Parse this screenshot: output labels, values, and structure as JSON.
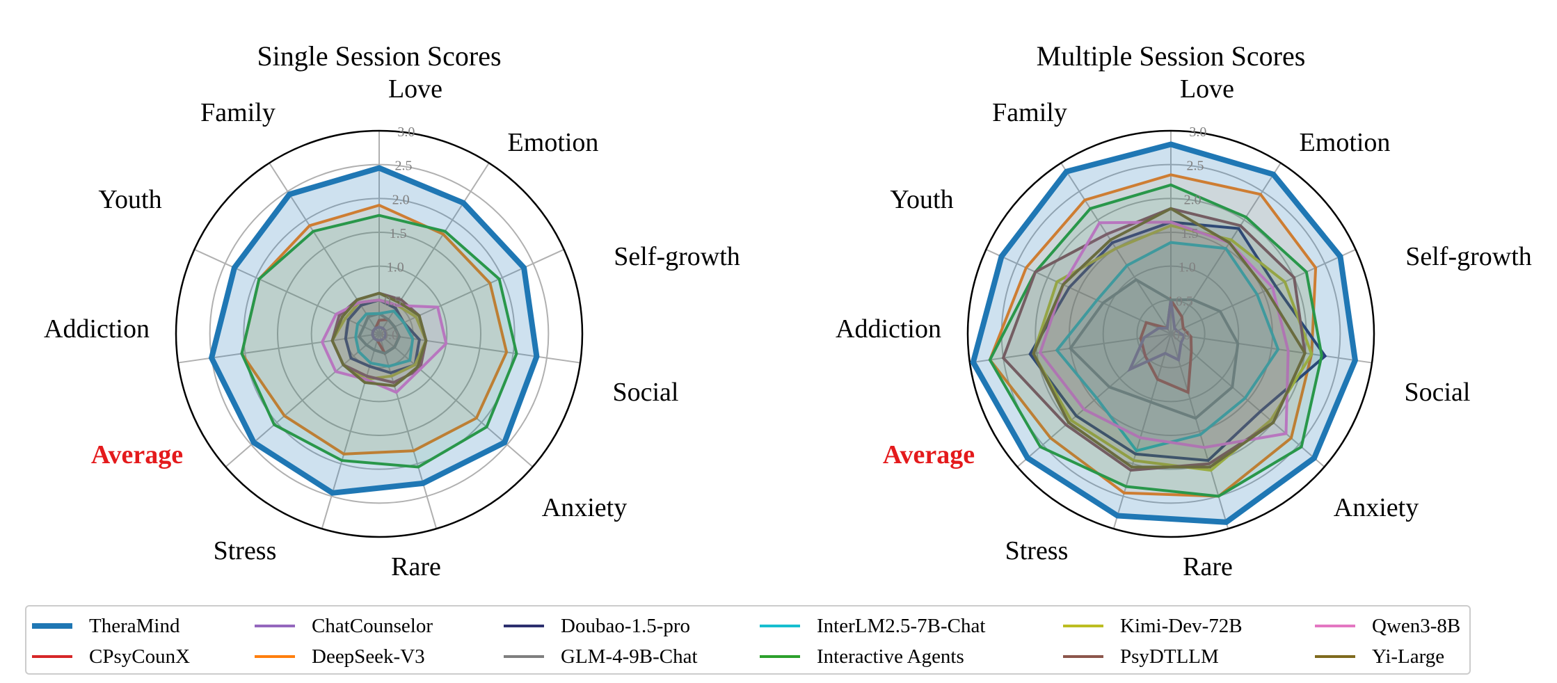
{
  "colors": {
    "TheraMind": "#1f77b4",
    "ChatCounselor": "#9467bd",
    "Doubao-1.5-pro": "#2c2f6e",
    "InterLM2.5-7B-Chat": "#17becf",
    "Kimi-Dev-72B": "#bcbd22",
    "Qwen3-8B": "#e377c2",
    "CPsyCounX": "#d62728",
    "DeepSeek-V3": "#ff7f0e",
    "GLM-4-9B-Chat": "#7f7f7f",
    "Interactive Agents": "#2ca02c",
    "PsyDTLLM": "#8c564b",
    "Yi-Large": "#7f6a1e"
  },
  "legend": {
    "columns": [
      [
        "TheraMind",
        "CPsyCounX"
      ],
      [
        "ChatCounselor",
        "DeepSeek-V3"
      ],
      [
        "Doubao-1.5-pro",
        "GLM-4-9B-Chat"
      ],
      [
        "InterLM2.5-7B-Chat",
        "Interactive Agents"
      ],
      [
        "Kimi-Dev-72B",
        "PsyDTLLM"
      ],
      [
        "Qwen3-8B",
        "Yi-Large"
      ]
    ]
  },
  "chart_data": [
    {
      "type": "radar",
      "title": "Single Session Scores",
      "categories": [
        "Love",
        "Emotion",
        "Self-growth",
        "Social",
        "Anxiety",
        "Rare",
        "Stress",
        "Average",
        "Addiction",
        "Youth",
        "Family"
      ],
      "highlighted_category": "Average",
      "rlim": [
        0,
        3.0
      ],
      "rticks": [
        "0.0",
        "0.5",
        "1.0",
        "1.5",
        "2.0",
        "2.5",
        "3.0"
      ],
      "grid": true,
      "series": [
        {
          "name": "TheraMind",
          "values": [
            2.45,
            2.3,
            2.35,
            2.35,
            2.45,
            2.3,
            2.45,
            2.45,
            2.5,
            2.35,
            2.45
          ]
        },
        {
          "name": "CPsyCounX",
          "values": [
            0.2,
            0.25,
            0.25,
            0.3,
            0.3,
            0.3,
            0.1,
            0.1,
            0.1,
            0.1,
            0.1
          ]
        },
        {
          "name": "ChatCounselor",
          "values": [
            0.1,
            0.1,
            0.1,
            0.1,
            0.1,
            0.1,
            0.1,
            0.1,
            0.1,
            0.1,
            0.1
          ]
        },
        {
          "name": "DeepSeek-V3",
          "values": [
            1.9,
            1.75,
            1.8,
            1.9,
            1.9,
            1.8,
            1.85,
            1.85,
            2.05,
            1.95,
            1.9
          ]
        },
        {
          "name": "Doubao-1.5-pro",
          "values": [
            0.5,
            0.45,
            0.4,
            0.6,
            0.7,
            0.6,
            0.5,
            0.55,
            0.5,
            0.5,
            0.5
          ]
        },
        {
          "name": "GLM-4-9B-Chat",
          "values": [
            0.3,
            0.25,
            0.25,
            0.3,
            0.3,
            0.3,
            0.25,
            0.25,
            0.3,
            0.25,
            0.3
          ]
        },
        {
          "name": "InterLM2.5-7B-Chat",
          "values": [
            0.3,
            0.4,
            0.4,
            0.5,
            0.6,
            0.5,
            0.45,
            0.4,
            0.35,
            0.35,
            0.35
          ]
        },
        {
          "name": "Interactive Agents",
          "values": [
            1.75,
            1.8,
            1.95,
            2.05,
            2.1,
            2.05,
            1.95,
            2.05,
            2.05,
            1.95,
            1.8
          ]
        },
        {
          "name": "Kimi-Dev-72B",
          "values": [
            0.5,
            0.5,
            0.6,
            0.7,
            0.7,
            0.65,
            0.7,
            0.7,
            0.7,
            0.55,
            0.55
          ]
        },
        {
          "name": "PsyDTLLM",
          "values": [
            0.6,
            0.6,
            0.65,
            0.7,
            0.8,
            0.75,
            0.65,
            0.7,
            0.7,
            0.65,
            0.6
          ]
        },
        {
          "name": "Qwen3-8B",
          "values": [
            0.5,
            0.5,
            0.95,
            1.0,
            0.8,
            0.9,
            0.7,
            0.85,
            0.85,
            0.7,
            0.55
          ]
        },
        {
          "name": "Yi-Large",
          "values": [
            0.6,
            0.55,
            0.65,
            0.7,
            0.75,
            0.8,
            0.75,
            0.7,
            0.7,
            0.6,
            0.6
          ]
        }
      ]
    },
    {
      "type": "radar",
      "title": "Multiple Session Scores",
      "categories": [
        "Love",
        "Emotion",
        "Self-growth",
        "Social",
        "Anxiety",
        "Rare",
        "Stress",
        "Average",
        "Addiction",
        "Youth",
        "Family"
      ],
      "highlighted_category": "Average",
      "rlim": [
        0,
        3.0
      ],
      "rticks": [
        "0.0",
        "0.5",
        "1.0",
        "1.5",
        "2.0",
        "2.5",
        "3.0"
      ],
      "grid": true,
      "series": [
        {
          "name": "TheraMind",
          "values": [
            2.8,
            2.8,
            2.75,
            2.75,
            2.8,
            2.9,
            2.8,
            2.8,
            2.95,
            2.75,
            2.85
          ]
        },
        {
          "name": "CPsyCounX",
          "values": [
            0.5,
            0.3,
            0.2,
            0.3,
            0.4,
            0.9,
            0.7,
            0.5,
            0.45,
            0.4,
            0.1
          ]
        },
        {
          "name": "ChatCounselor",
          "values": [
            0.5,
            0.1,
            0.1,
            0.2,
            0.2,
            0.4,
            0.3,
            0.8,
            0.4,
            0.2,
            0.1
          ]
        },
        {
          "name": "DeepSeek-V3",
          "values": [
            2.35,
            2.45,
            2.35,
            2.1,
            2.35,
            2.5,
            2.45,
            2.35,
            2.7,
            2.35,
            2.35
          ]
        },
        {
          "name": "Doubao-1.5-pro",
          "values": [
            1.65,
            1.85,
            1.7,
            2.3,
            1.75,
            1.95,
            1.85,
            1.85,
            2.1,
            1.65,
            1.6
          ]
        },
        {
          "name": "GLM-4-9B-Chat",
          "values": [
            0.5,
            0.6,
            0.8,
            1.0,
            1.2,
            1.3,
            1.05,
            1.2,
            1.5,
            1.1,
            0.95
          ]
        },
        {
          "name": "InterLM2.5-7B-Chat",
          "values": [
            1.35,
            1.5,
            1.4,
            1.6,
            1.45,
            1.55,
            1.8,
            1.45,
            1.7,
            1.2,
            1.2
          ]
        },
        {
          "name": "Interactive Agents",
          "values": [
            2.2,
            2.05,
            2.2,
            2.25,
            2.55,
            2.5,
            2.35,
            2.55,
            2.7,
            2.2,
            2.2
          ]
        },
        {
          "name": "Kimi-Dev-72B",
          "values": [
            1.6,
            1.65,
            1.85,
            2.1,
            1.95,
            2.1,
            1.95,
            1.95,
            2.05,
            1.85,
            1.5
          ]
        },
        {
          "name": "PsyDTLLM",
          "values": [
            1.85,
            1.9,
            2.0,
            2.0,
            2.0,
            2.0,
            2.1,
            2.05,
            2.5,
            2.2,
            1.75
          ]
        },
        {
          "name": "Qwen3-8B",
          "values": [
            1.65,
            1.6,
            1.65,
            1.75,
            2.25,
            1.75,
            1.6,
            1.7,
            1.95,
            1.75,
            1.95
          ]
        },
        {
          "name": "Yi-Large",
          "values": [
            1.85,
            1.6,
            1.55,
            2.0,
            2.0,
            2.05,
            2.05,
            2.0,
            2.05,
            1.75,
            1.65
          ]
        }
      ]
    }
  ]
}
